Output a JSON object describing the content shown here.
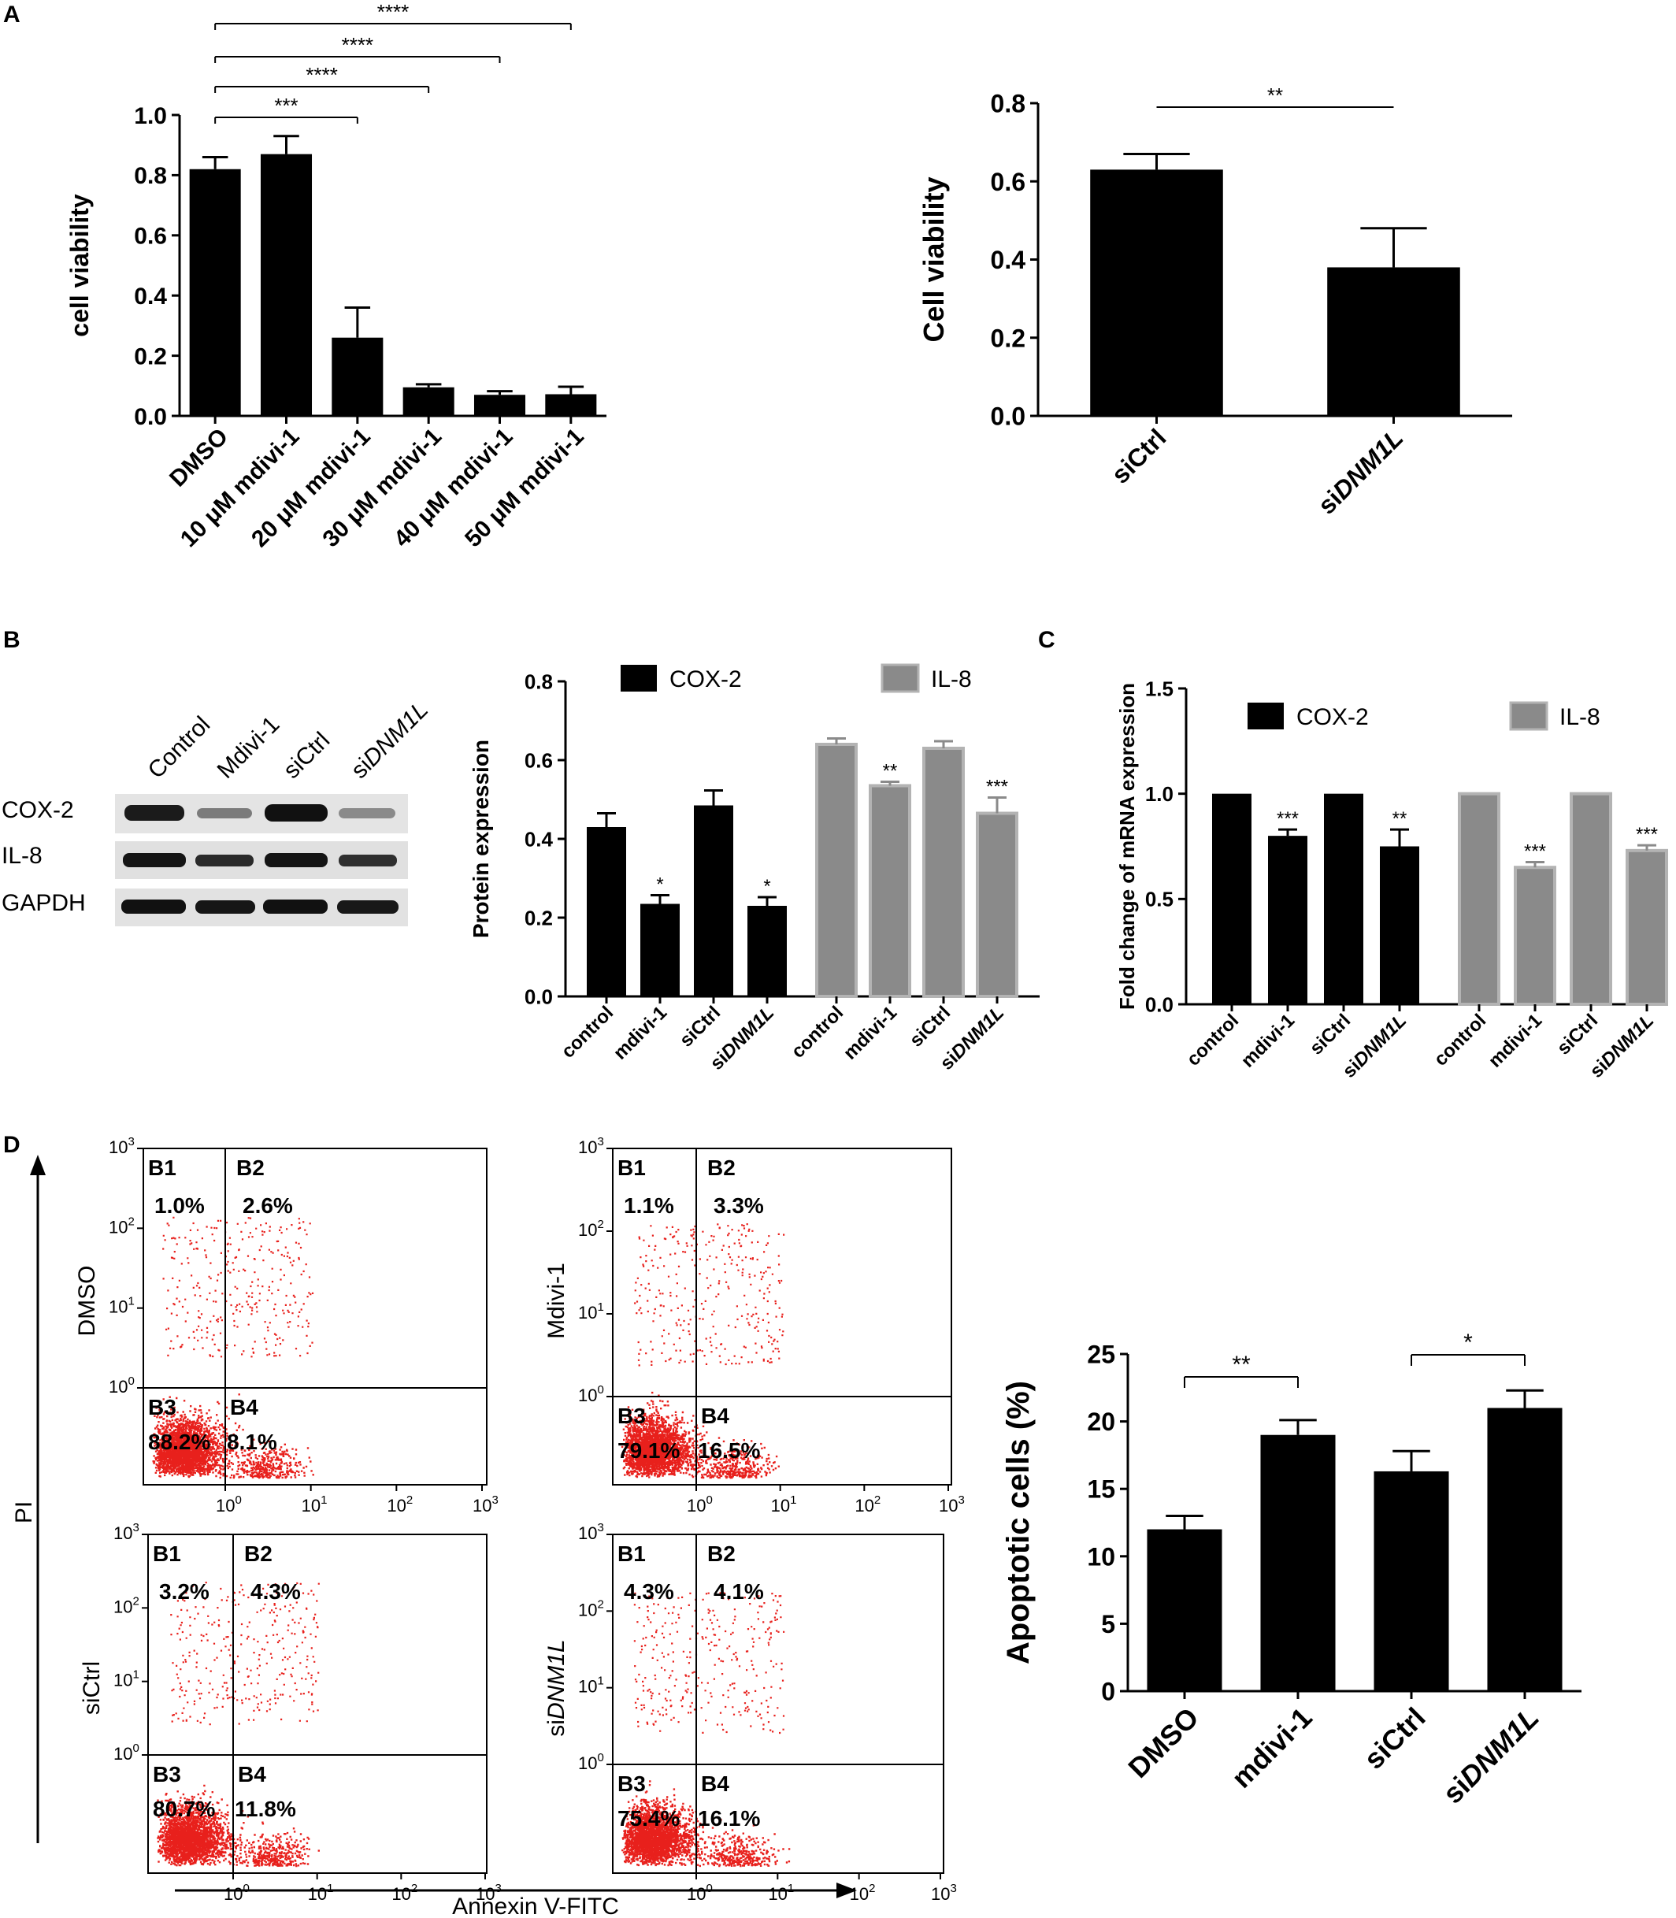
{
  "panels": {
    "A": "A",
    "B": "B",
    "C": "C",
    "D": "D"
  },
  "colors": {
    "black_bar": "#000000",
    "gray_bar": "#8a8a8a",
    "gray_bar_edge": "#b3b3b3",
    "flow_dots": "#e8201c"
  },
  "western_blot": {
    "lane_labels": [
      "Control",
      "Mdivi-1",
      "siCtrl",
      "si",
      "DNM1L"
    ],
    "row_labels": [
      "COX-2",
      "IL-8",
      "GAPDH"
    ]
  },
  "flow": {
    "y_axis_label": "PI",
    "x_axis_label": "Annexin V-FITC",
    "tick_base": "10",
    "tick_exponents": [
      "0",
      "1",
      "2",
      "3"
    ],
    "quadrant_names": [
      "B1",
      "B2",
      "B3",
      "B4"
    ],
    "plots": [
      {
        "label": "DMSO",
        "label_italic": "",
        "B1": "1.0%",
        "B2": "2.6%",
        "B3": "88.2%",
        "B4": "8.1%"
      },
      {
        "label": "Mdivi-1",
        "label_italic": "",
        "B1": "1.1%",
        "B2": "3.3%",
        "B3": "79.1%",
        "B4": "16.5%"
      },
      {
        "label": "siCtrl",
        "label_italic": "",
        "B1": "3.2%",
        "B2": "4.3%",
        "B3": "80.7%",
        "B4": "11.8%"
      },
      {
        "label": "si",
        "label_italic": "DNM1L",
        "B1": "4.3%",
        "B2": "4.1%",
        "B3": "75.4%",
        "B4": "16.1%"
      }
    ]
  },
  "chart_data": [
    {
      "id": "A1",
      "type": "bar",
      "categories": [
        "DMSO",
        "10 μM mdivi-1",
        "20 μM mdivi-1",
        "30 μM mdivi-1",
        "40 μM mdivi-1",
        "50 μM mdivi-1"
      ],
      "values": [
        0.82,
        0.87,
        0.26,
        0.095,
        0.07,
        0.072
      ],
      "errors": [
        0.04,
        0.06,
        0.1,
        0.01,
        0.012,
        0.025
      ],
      "ylabel": "cell viability",
      "ylim": [
        0,
        1.0
      ],
      "yticks": [
        "0.0",
        "0.2",
        "0.4",
        "0.6",
        "0.8",
        "1.0"
      ],
      "significance": [
        {
          "from": "DMSO",
          "to": "20 μM mdivi-1",
          "label": "***"
        },
        {
          "from": "DMSO",
          "to": "30 μM mdivi-1",
          "label": "****"
        },
        {
          "from": "DMSO",
          "to": "40 μM mdivi-1",
          "label": "****"
        },
        {
          "from": "DMSO",
          "to": "50 μM mdivi-1",
          "label": "****"
        }
      ]
    },
    {
      "id": "A2",
      "type": "bar",
      "categories": [
        "siCtrl",
        "siDNM1L"
      ],
      "values": [
        0.63,
        0.38
      ],
      "errors": [
        0.04,
        0.1
      ],
      "ylabel": "Cell viability",
      "ylim": [
        0,
        0.8
      ],
      "yticks": [
        "0.0",
        "0.2",
        "0.4",
        "0.6",
        "0.8"
      ],
      "significance": [
        {
          "from": "siCtrl",
          "to": "siDNM1L",
          "label": "**"
        }
      ]
    },
    {
      "id": "B",
      "type": "bar",
      "ylabel": "Protein expression",
      "ylim": [
        0,
        0.8
      ],
      "yticks": [
        "0.0",
        "0.2",
        "0.4",
        "0.6",
        "0.8"
      ],
      "legend_position": "top",
      "series": [
        {
          "name": "COX-2",
          "categories": [
            "control",
            "mdivi-1",
            "siCtrl",
            "siDNM1L"
          ],
          "values": [
            0.43,
            0.235,
            0.485,
            0.23
          ],
          "errors": [
            0.035,
            0.022,
            0.038,
            0.022
          ],
          "stars": [
            "",
            "*",
            "",
            "*"
          ]
        },
        {
          "name": "IL-8",
          "categories": [
            "control",
            "mdivi-1",
            "siCtrl",
            "siDNM1L"
          ],
          "values": [
            0.64,
            0.535,
            0.63,
            0.465
          ],
          "errors": [
            0.015,
            0.01,
            0.018,
            0.04
          ],
          "stars": [
            "",
            "**",
            "",
            "***"
          ]
        }
      ]
    },
    {
      "id": "C",
      "type": "bar",
      "ylabel": "Fold change of mRNA expression",
      "ylim": [
        0,
        1.5
      ],
      "yticks": [
        "0.0",
        "0.5",
        "1.0",
        "1.5"
      ],
      "legend_position": "top",
      "series": [
        {
          "name": "COX-2",
          "categories": [
            "control",
            "mdivi-1",
            "siCtrl",
            "siDNM1L"
          ],
          "values": [
            1.0,
            0.8,
            1.0,
            0.75
          ],
          "errors": [
            0,
            0.03,
            0,
            0.08
          ],
          "stars": [
            "",
            "***",
            "",
            "**"
          ]
        },
        {
          "name": "IL-8",
          "categories": [
            "control",
            "mdivi-1",
            "siCtrl",
            "siDNM1L"
          ],
          "values": [
            1.0,
            0.65,
            1.0,
            0.73
          ],
          "errors": [
            0,
            0.025,
            0,
            0.025
          ],
          "stars": [
            "",
            "***",
            "",
            "***"
          ]
        }
      ]
    },
    {
      "id": "D",
      "type": "bar",
      "categories": [
        "DMSO",
        "mdivi-1",
        "siCtrl",
        "siDNM1L"
      ],
      "values": [
        12,
        19,
        16.3,
        21
      ],
      "errors": [
        1.0,
        1.1,
        1.5,
        1.3
      ],
      "ylabel": "Apoptotic cells (%)",
      "ylim": [
        0,
        25
      ],
      "yticks": [
        "0",
        "5",
        "10",
        "15",
        "20",
        "25"
      ],
      "significance": [
        {
          "from": "DMSO",
          "to": "mdivi-1",
          "label": "**"
        },
        {
          "from": "siCtrl",
          "to": "siDNM1L",
          "label": "*"
        }
      ]
    }
  ]
}
